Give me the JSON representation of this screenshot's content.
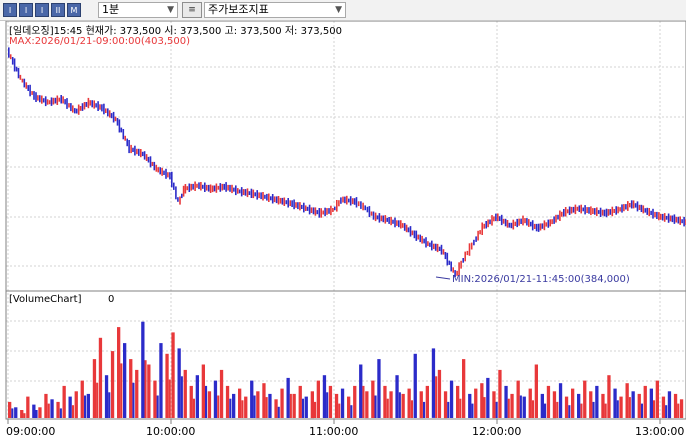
{
  "toolbar": {
    "buttons": [
      "I",
      "I",
      "I",
      "II",
      "M"
    ],
    "interval": "1분",
    "indicator": "주가보조지표"
  },
  "price_panel": {
    "header": "[일데오징]15:45 현재가: 373,500 시: 373,500 고: 373,500 저: 373,500",
    "max_label": "MAX:2026/01/21-09:00:00(403,500)",
    "min_label": "MIN:2026/01/21-11:45:00(384,000)"
  },
  "volume_panel": {
    "title": "[VolumeChart]",
    "value": "0"
  },
  "colors": {
    "up": "#e8383a",
    "down": "#2b2bc9",
    "grid": "#d3d3d3",
    "border": "#808080",
    "annotation": "#3a3aa0"
  },
  "chart_data": {
    "type": "line",
    "x_ticks": [
      "09:00:00",
      "10:00:00",
      "11:00:00",
      "12:00:00",
      "13:00:00"
    ],
    "price_series": {
      "name": "price",
      "points": [
        [
          "09:00",
          403.5
        ],
        [
          "09:05",
          401.0
        ],
        [
          "09:10",
          399.5
        ],
        [
          "09:15",
          399.0
        ],
        [
          "09:20",
          399.3
        ],
        [
          "09:25",
          398.2
        ],
        [
          "09:30",
          399.0
        ],
        [
          "09:35",
          398.5
        ],
        [
          "09:40",
          397.5
        ],
        [
          "09:45",
          395.0
        ],
        [
          "09:50",
          394.5
        ],
        [
          "09:55",
          393.2
        ],
        [
          "10:00",
          392.6
        ],
        [
          "10:03",
          390.3
        ],
        [
          "10:05",
          391.5
        ],
        [
          "10:10",
          391.8
        ],
        [
          "10:15",
          391.5
        ],
        [
          "10:20",
          391.7
        ],
        [
          "10:25",
          391.3
        ],
        [
          "10:30",
          391.1
        ],
        [
          "10:35",
          390.8
        ],
        [
          "10:40",
          390.5
        ],
        [
          "10:45",
          390.2
        ],
        [
          "10:50",
          389.8
        ],
        [
          "10:55",
          389.4
        ],
        [
          "11:00",
          389.7
        ],
        [
          "11:03",
          390.6
        ],
        [
          "11:08",
          390.4
        ],
        [
          "11:12",
          389.8
        ],
        [
          "11:15",
          389.1
        ],
        [
          "11:20",
          388.8
        ],
        [
          "11:25",
          388.4
        ],
        [
          "11:30",
          387.5
        ],
        [
          "11:35",
          386.7
        ],
        [
          "11:40",
          386.2
        ],
        [
          "11:45",
          384.0
        ],
        [
          "11:48",
          385.5
        ],
        [
          "11:52",
          387.0
        ],
        [
          "11:55",
          388.2
        ],
        [
          "12:00",
          389.1
        ],
        [
          "12:05",
          388.3
        ],
        [
          "12:10",
          388.8
        ],
        [
          "12:15",
          388.1
        ],
        [
          "12:20",
          388.6
        ],
        [
          "12:25",
          389.5
        ],
        [
          "12:30",
          389.8
        ],
        [
          "12:35",
          389.6
        ],
        [
          "12:40",
          389.4
        ],
        [
          "12:45",
          389.7
        ],
        [
          "12:50",
          390.2
        ],
        [
          "12:55",
          389.6
        ],
        [
          "13:00",
          389.1
        ],
        [
          "13:05",
          388.9
        ],
        [
          "13:10",
          388.6
        ],
        [
          "13:15",
          388.2
        ],
        [
          "13:20",
          388.9
        ],
        [
          "13:23",
          389.1
        ]
      ]
    },
    "volume_series": {
      "name": "VolumeChart",
      "values": [
        6,
        4,
        3,
        8,
        5,
        4,
        9,
        7,
        6,
        12,
        8,
        10,
        14,
        9,
        22,
        30,
        16,
        25,
        34,
        28,
        22,
        18,
        36,
        20,
        14,
        28,
        24,
        32,
        26,
        18,
        12,
        16,
        20,
        10,
        14,
        18,
        12,
        9,
        11,
        8,
        14,
        10,
        13,
        9,
        7,
        11,
        15,
        9,
        12,
        8,
        10,
        14,
        16,
        12,
        9,
        11,
        8,
        12,
        20,
        10,
        14,
        22,
        12,
        10,
        16,
        9,
        11,
        24,
        10,
        12,
        26,
        18,
        10,
        14,
        12,
        22,
        9,
        11,
        13,
        15,
        10,
        18,
        12,
        9,
        14,
        8,
        11,
        20,
        9,
        12,
        10,
        13,
        8,
        11,
        9,
        14,
        10,
        12,
        9,
        16,
        11,
        8,
        13,
        10,
        9,
        12,
        11,
        14,
        8,
        10,
        9,
        7
      ],
      "ylim": [
        0,
        40
      ]
    }
  }
}
